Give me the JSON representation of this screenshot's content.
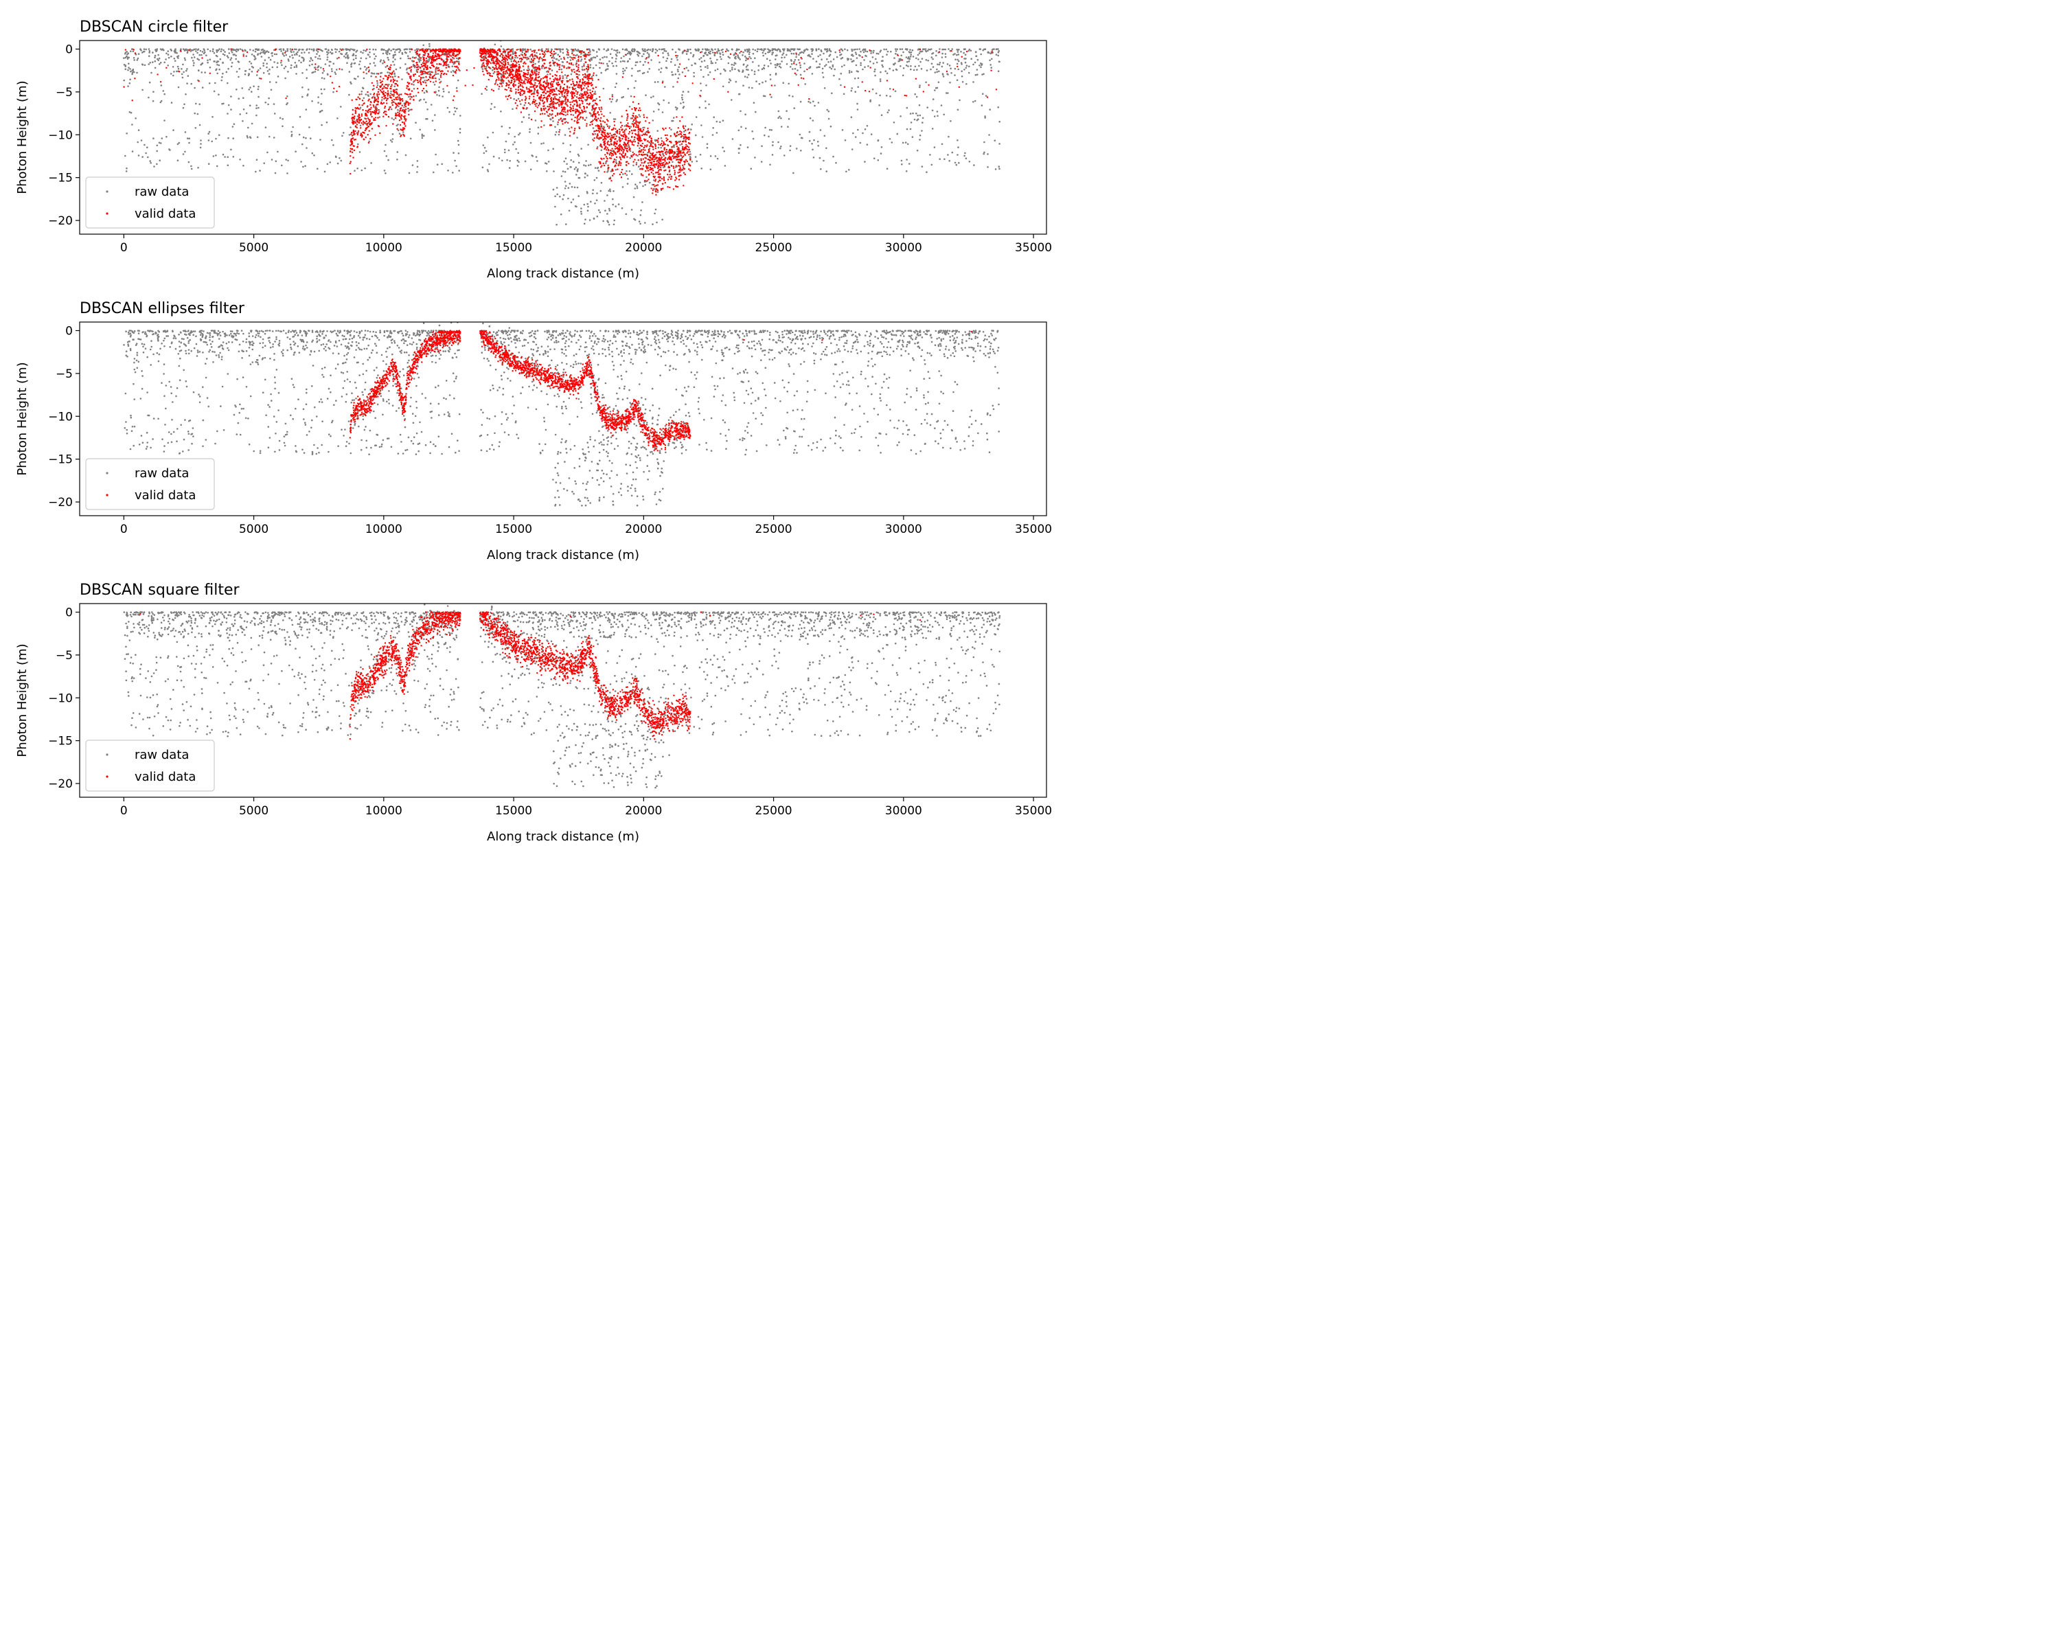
{
  "chart_data": [
    {
      "type": "scatter",
      "title": "DBSCAN circle filter",
      "xlabel": "Along track distance (m)",
      "ylabel": "Photon Height (m)",
      "xlim": [
        -1700,
        35500
      ],
      "ylim": [
        -21.6,
        1.0
      ],
      "xticks": [
        0,
        5000,
        10000,
        15000,
        20000,
        25000,
        30000,
        35000
      ],
      "xtick_labels": [
        "0",
        "5000",
        "10000",
        "15000",
        "20000",
        "25000",
        "30000",
        "35000"
      ],
      "yticks": [
        0,
        -5,
        -10,
        -15,
        -20
      ],
      "ytick_labels": [
        "0",
        "−5",
        "−10",
        "−15",
        "−20"
      ],
      "legend": {
        "placement": "lower-left",
        "entries": [
          "raw data",
          "valid data"
        ]
      },
      "grid": false,
      "series": [
        {
          "name": "raw data",
          "color": "#808080",
          "marker": "dot"
        },
        {
          "name": "valid data",
          "color": "#ff0000",
          "marker": "dot"
        }
      ],
      "valid_profile": [
        [
          8700,
          -14
        ],
        [
          8750,
          -10
        ],
        [
          9000,
          -8.5
        ],
        [
          9400,
          -8
        ],
        [
          9700,
          -6.5
        ],
        [
          10000,
          -5.5
        ],
        [
          10300,
          -4.5
        ],
        [
          10500,
          -5.5
        ],
        [
          10700,
          -8
        ],
        [
          10800,
          -8
        ],
        [
          10900,
          -5
        ],
        [
          11200,
          -3
        ],
        [
          11600,
          -1.5
        ],
        [
          12000,
          -1
        ],
        [
          12500,
          -0.5
        ],
        [
          12950,
          -0.3
        ],
        [
          13700,
          0
        ],
        [
          14200,
          -1.5
        ],
        [
          15000,
          -3.5
        ],
        [
          16000,
          -5
        ],
        [
          17000,
          -6.2
        ],
        [
          17500,
          -6.5
        ],
        [
          17900,
          -4
        ],
        [
          18300,
          -9
        ],
        [
          18700,
          -11
        ],
        [
          19300,
          -10.5
        ],
        [
          19700,
          -9
        ],
        [
          20100,
          -11.5
        ],
        [
          20500,
          -13
        ],
        [
          21000,
          -12
        ],
        [
          21500,
          -11.5
        ],
        [
          21800,
          -12
        ]
      ],
      "valid_spread": 1.4,
      "spurious_surface": 140
    },
    {
      "type": "scatter",
      "title": "DBSCAN ellipses filter",
      "xlabel": "Along track distance (m)",
      "ylabel": "Photon Height (m)",
      "xlim": [
        -1700,
        35500
      ],
      "ylim": [
        -21.6,
        1.0
      ],
      "xticks": [
        0,
        5000,
        10000,
        15000,
        20000,
        25000,
        30000,
        35000
      ],
      "xtick_labels": [
        "0",
        "5000",
        "10000",
        "15000",
        "20000",
        "25000",
        "30000",
        "35000"
      ],
      "yticks": [
        0,
        -5,
        -10,
        -15,
        -20
      ],
      "ytick_labels": [
        "0",
        "−5",
        "−10",
        "−15",
        "−20"
      ],
      "legend": {
        "placement": "lower-left",
        "entries": [
          "raw data",
          "valid data"
        ]
      },
      "grid": false,
      "series": [
        {
          "name": "raw data",
          "color": "#808080",
          "marker": "dot"
        },
        {
          "name": "valid data",
          "color": "#ff0000",
          "marker": "dot"
        }
      ],
      "valid_profile": [
        [
          8700,
          -13.5
        ],
        [
          8750,
          -10
        ],
        [
          9000,
          -9
        ],
        [
          9400,
          -8.8
        ],
        [
          9700,
          -7
        ],
        [
          10000,
          -6
        ],
        [
          10300,
          -4.5
        ],
        [
          10500,
          -5
        ],
        [
          10700,
          -8.5
        ],
        [
          10800,
          -9
        ],
        [
          10900,
          -6
        ],
        [
          11200,
          -3.5
        ],
        [
          11600,
          -2
        ],
        [
          12000,
          -1.2
        ],
        [
          12500,
          -0.6
        ],
        [
          12950,
          -0.3
        ],
        [
          13700,
          0
        ],
        [
          14200,
          -1.8
        ],
        [
          15000,
          -3.8
        ],
        [
          16000,
          -5
        ],
        [
          17000,
          -6.3
        ],
        [
          17500,
          -6.3
        ],
        [
          17900,
          -4
        ],
        [
          18300,
          -9
        ],
        [
          18700,
          -11
        ],
        [
          19300,
          -10.5
        ],
        [
          19700,
          -9
        ],
        [
          20100,
          -11.8
        ],
        [
          20500,
          -13
        ],
        [
          21000,
          -12
        ],
        [
          21500,
          -11.5
        ],
        [
          21800,
          -11.8
        ]
      ],
      "valid_spread": 0.55,
      "spurious_surface": 3
    },
    {
      "type": "scatter",
      "title": "DBSCAN square filter",
      "xlabel": "Along track distance (m)",
      "ylabel": "Photon Height (m)",
      "xlim": [
        -1700,
        35500
      ],
      "ylim": [
        -21.6,
        1.0
      ],
      "xticks": [
        0,
        5000,
        10000,
        15000,
        20000,
        25000,
        30000,
        35000
      ],
      "xtick_labels": [
        "0",
        "5000",
        "10000",
        "15000",
        "20000",
        "25000",
        "30000",
        "35000"
      ],
      "yticks": [
        0,
        -5,
        -10,
        -15,
        -20
      ],
      "ytick_labels": [
        "0",
        "−5",
        "−10",
        "−15",
        "−20"
      ],
      "legend": {
        "placement": "lower-left",
        "entries": [
          "raw data",
          "valid data"
        ]
      },
      "grid": false,
      "series": [
        {
          "name": "raw data",
          "color": "#808080",
          "marker": "dot"
        },
        {
          "name": "valid data",
          "color": "#ff0000",
          "marker": "dot"
        }
      ],
      "valid_profile": [
        [
          8700,
          -14
        ],
        [
          8750,
          -10
        ],
        [
          9000,
          -8.7
        ],
        [
          9400,
          -8.5
        ],
        [
          9700,
          -6.8
        ],
        [
          10000,
          -5.5
        ],
        [
          10300,
          -4.5
        ],
        [
          10500,
          -5
        ],
        [
          10700,
          -8
        ],
        [
          10800,
          -8.5
        ],
        [
          10900,
          -5.5
        ],
        [
          11200,
          -3.5
        ],
        [
          11600,
          -1.8
        ],
        [
          12000,
          -1
        ],
        [
          12500,
          -0.5
        ],
        [
          12950,
          -0.3
        ],
        [
          13700,
          0
        ],
        [
          14200,
          -1.8
        ],
        [
          15000,
          -3.8
        ],
        [
          16000,
          -5
        ],
        [
          17000,
          -6.3
        ],
        [
          17500,
          -6.3
        ],
        [
          17900,
          -4
        ],
        [
          18300,
          -9
        ],
        [
          18700,
          -11
        ],
        [
          19300,
          -10.5
        ],
        [
          19700,
          -9
        ],
        [
          20100,
          -11.8
        ],
        [
          20500,
          -13
        ],
        [
          21000,
          -12
        ],
        [
          21500,
          -11.5
        ],
        [
          21800,
          -12
        ]
      ],
      "valid_spread": 0.8,
      "spurious_surface": 8
    }
  ]
}
